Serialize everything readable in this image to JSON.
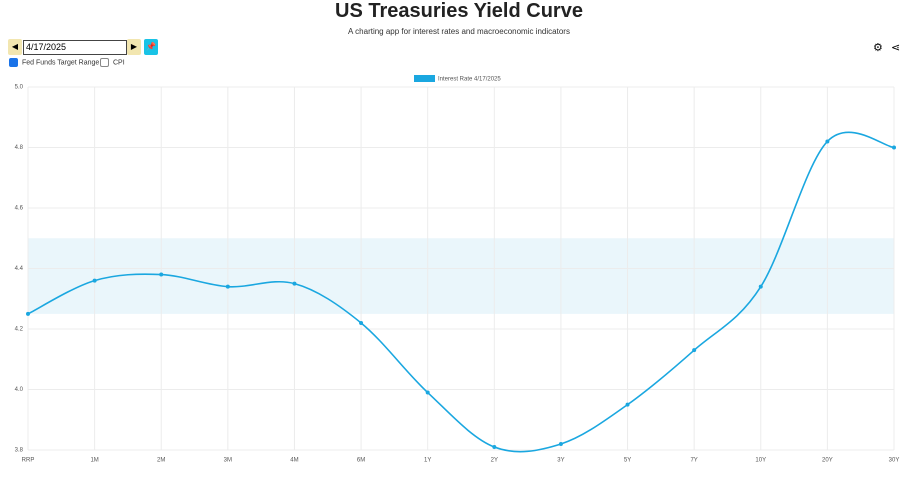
{
  "ui": {
    "date": "4/17/2025",
    "fed_funds_label": "Fed Funds Target Range",
    "fed_funds_checked": true,
    "cpi_label": "CPI",
    "cpi_checked": false
  },
  "chart_data": {
    "type": "line",
    "title": "US Treasuries Yield Curve",
    "subtitle": "A charting app for interest rates and macroeconomic indicators",
    "categories": [
      "RRP",
      "1M",
      "2M",
      "3M",
      "4M",
      "6M",
      "1Y",
      "2Y",
      "3Y",
      "5Y",
      "7Y",
      "10Y",
      "20Y",
      "30Y"
    ],
    "series": [
      {
        "name": "Interest Rate 4/17/2025",
        "color": "#1aa7e0",
        "values": [
          4.25,
          4.36,
          4.38,
          4.34,
          4.35,
          4.22,
          3.99,
          3.81,
          3.82,
          3.95,
          4.13,
          4.34,
          4.82,
          4.8
        ]
      }
    ],
    "fed_funds_range": [
      4.25,
      4.5
    ],
    "band_color": "#eaf6fb",
    "ylim": [
      3.8,
      5.0
    ],
    "yticks": [
      3.8,
      {
        "value": 4.0,
        "label": "4.0"
      },
      4.2,
      4.4,
      4.6,
      4.8,
      {
        "value": 5.0,
        "label": "5.0"
      }
    ],
    "grid": true
  }
}
